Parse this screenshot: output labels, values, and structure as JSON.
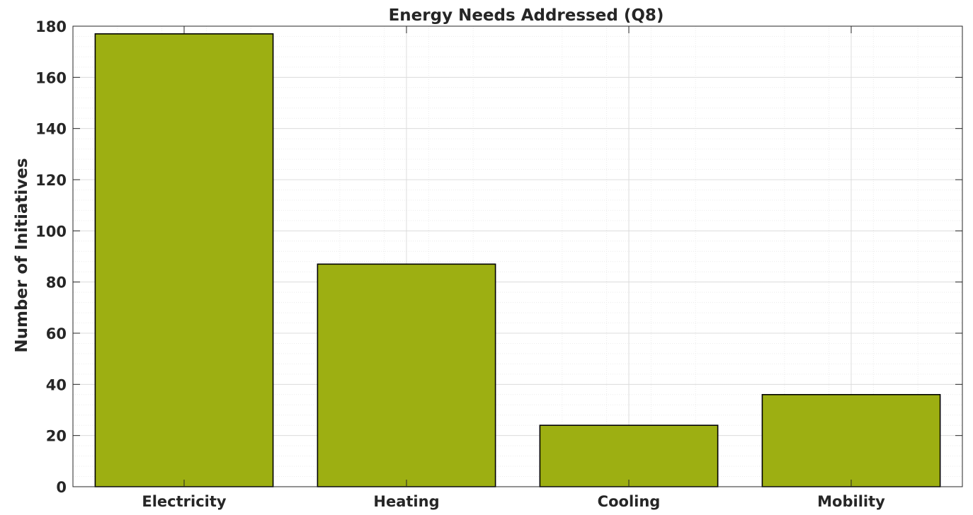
{
  "chart_data": {
    "type": "bar",
    "title": "Energy Needs Addressed (Q8)",
    "xlabel": "",
    "ylabel": "Number of Initiatives",
    "categories": [
      "Electricity",
      "Heating",
      "Cooling",
      "Mobility"
    ],
    "values": [
      177,
      87,
      24,
      36
    ],
    "ylim": [
      0,
      180
    ],
    "yticks": [
      "0",
      "20",
      "40",
      "60",
      "80",
      "100",
      "120",
      "140",
      "160",
      "180"
    ],
    "grid": true,
    "minor_grid": true,
    "legend": "none",
    "colors": {
      "bar_fill": "#9daf12",
      "bar_edge": "#000000",
      "major_grid": "#dcdcdc",
      "minor_grid": "#ececec",
      "axes": "#262626"
    }
  }
}
